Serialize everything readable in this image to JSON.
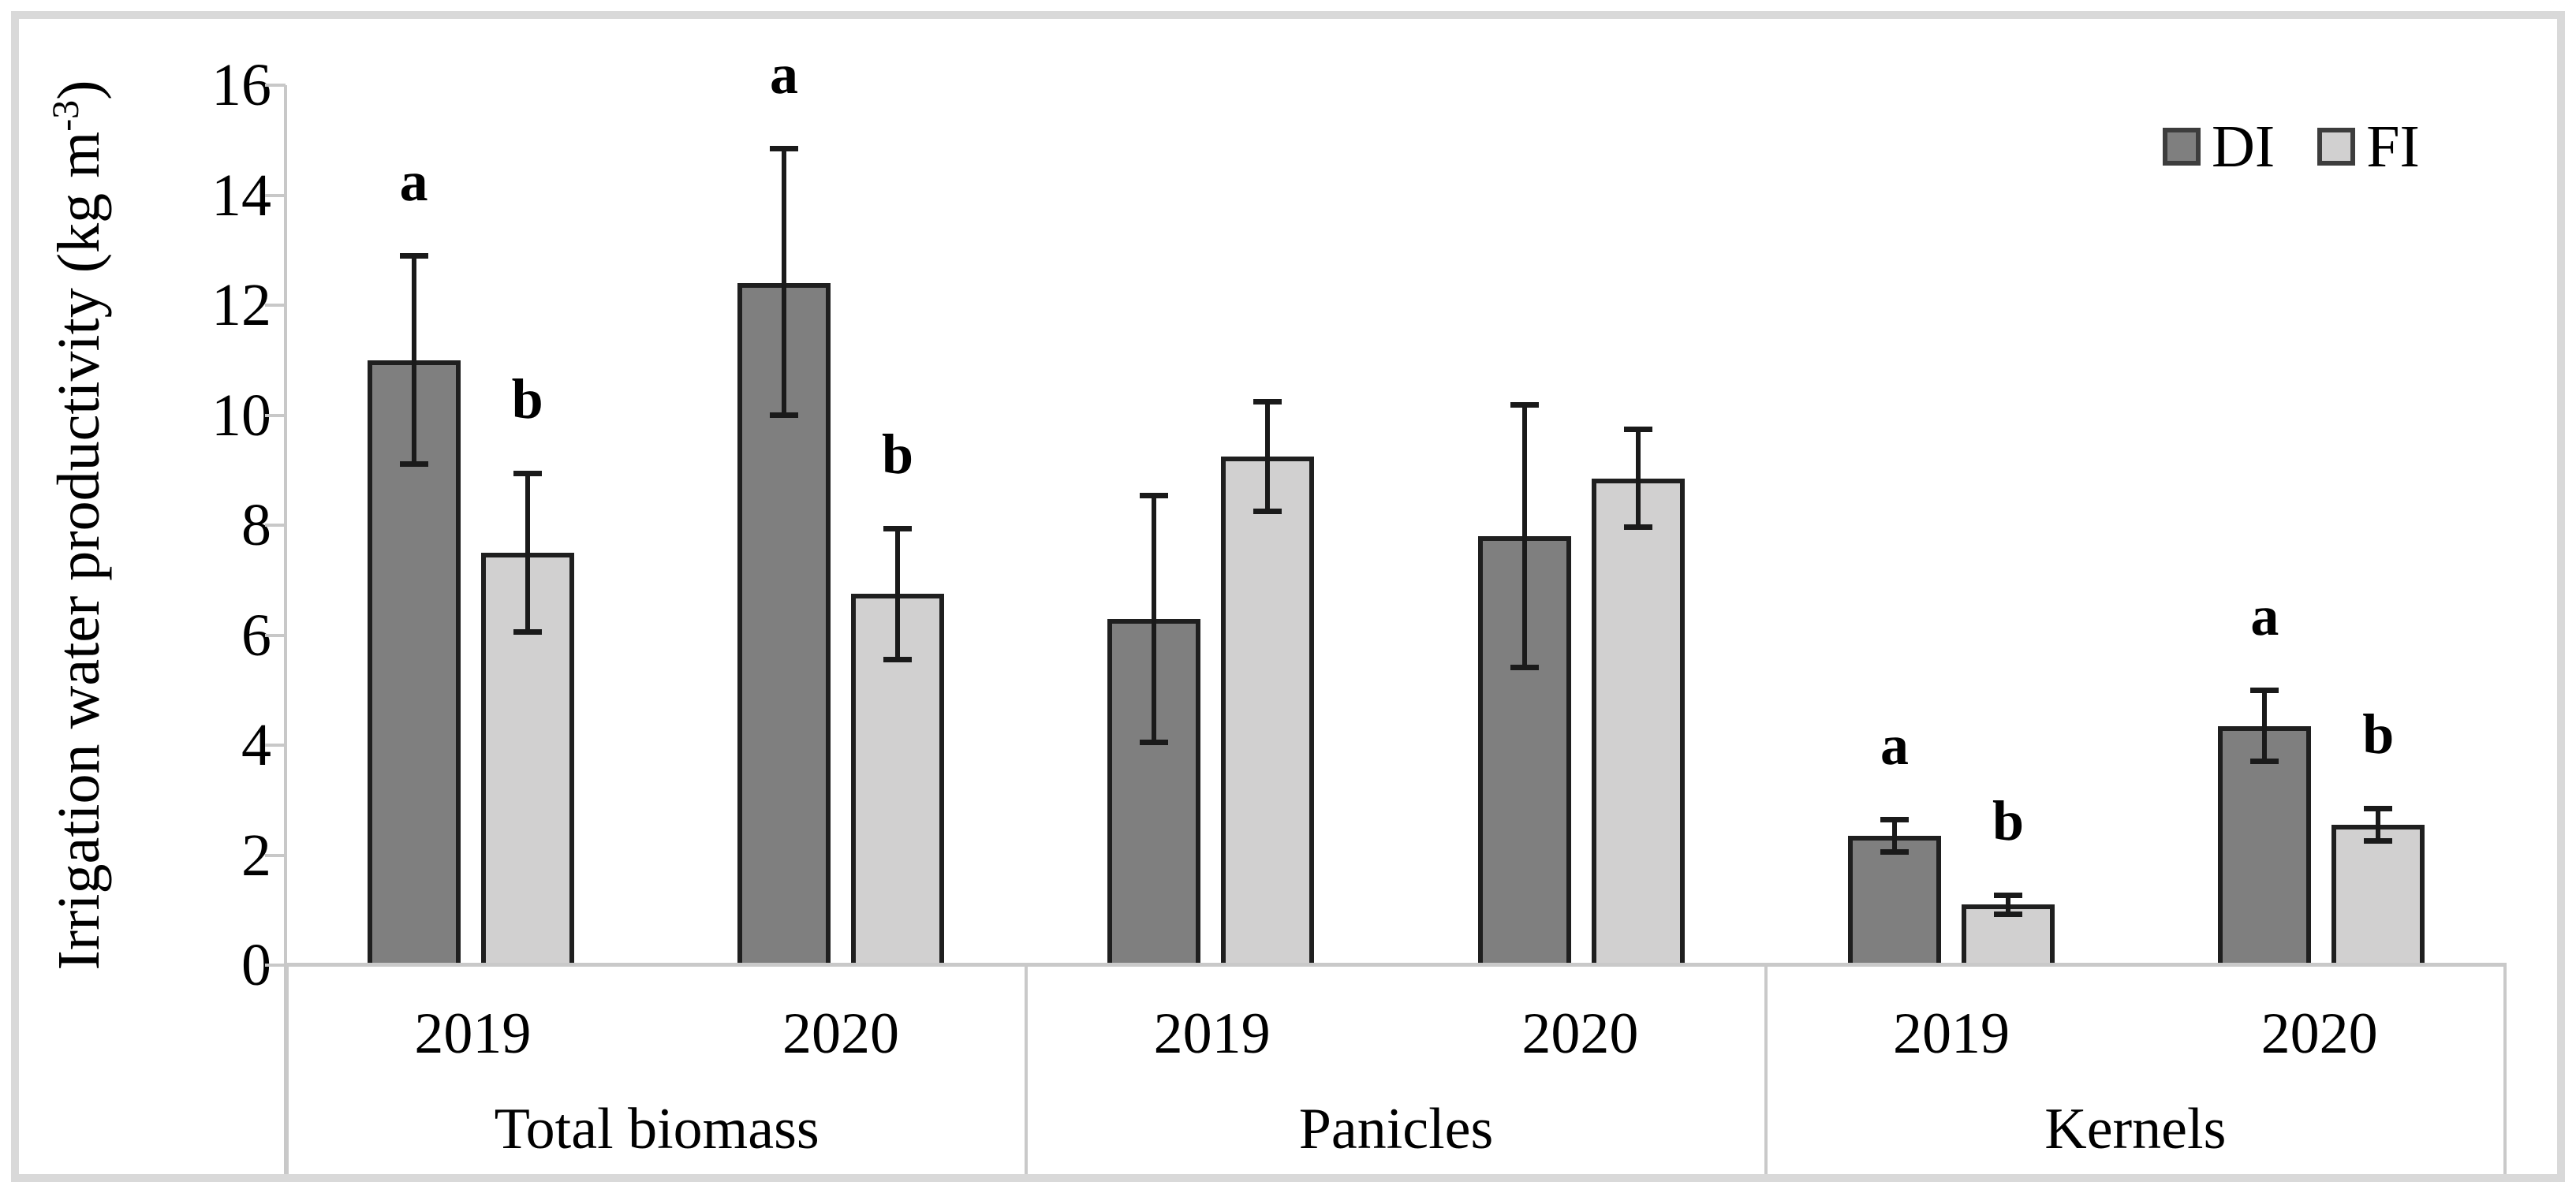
{
  "figure": {
    "background": "#ffffff",
    "border_color": "#d9d9d9"
  },
  "axis": {
    "y": {
      "title_main": "Irrigation water productivity (kg m",
      "title_sup": "-3",
      "title_close": ")",
      "ticks": [
        0,
        2,
        4,
        6,
        8,
        10,
        12,
        14,
        16
      ],
      "min": 0,
      "max": 16
    }
  },
  "legend": {
    "items": [
      {
        "label": "DI",
        "color": "#7f7f7f"
      },
      {
        "label": "FI",
        "color": "#d1d0d0"
      }
    ]
  },
  "colors": {
    "di_fill": "#7f7f7f",
    "fi_fill": "#d1d0d0",
    "bar_border": "#1f1f1f",
    "error_bar": "#1a1a1a",
    "axis_line": "#c8c8c8",
    "text": "#000000"
  },
  "chart_data": {
    "type": "bar",
    "title": "",
    "xlabel": "",
    "ylabel": "Irrigation water productivity (kg m-3)",
    "ylim": [
      0,
      16
    ],
    "ytick_step": 2,
    "grid": false,
    "legend_position": "top-right",
    "series_names": [
      "DI",
      "FI"
    ],
    "groups": [
      {
        "label": "Total biomass",
        "clusters": [
          {
            "year": "2019",
            "bars": [
              {
                "series": "DI",
                "value": 11.0,
                "err_low": 9.1,
                "err_high": 12.9,
                "letter": "a"
              },
              {
                "series": "FI",
                "value": 7.5,
                "err_low": 6.05,
                "err_high": 8.95,
                "letter": "b"
              }
            ]
          },
          {
            "year": "2020",
            "bars": [
              {
                "series": "DI",
                "value": 12.4,
                "err_low": 10.0,
                "err_high": 14.85,
                "letter": "a"
              },
              {
                "series": "FI",
                "value": 6.75,
                "err_low": 5.55,
                "err_high": 7.95,
                "letter": "b"
              }
            ]
          }
        ]
      },
      {
        "label": "Panicles",
        "clusters": [
          {
            "year": "2019",
            "bars": [
              {
                "series": "DI",
                "value": 6.3,
                "err_low": 4.05,
                "err_high": 8.55,
                "letter": ""
              },
              {
                "series": "FI",
                "value": 9.25,
                "err_low": 8.25,
                "err_high": 10.25,
                "letter": ""
              }
            ]
          },
          {
            "year": "2020",
            "bars": [
              {
                "series": "DI",
                "value": 7.8,
                "err_low": 5.4,
                "err_high": 10.2,
                "letter": ""
              },
              {
                "series": "FI",
                "value": 8.85,
                "err_low": 7.95,
                "err_high": 9.75,
                "letter": ""
              }
            ]
          }
        ]
      },
      {
        "label": "Kernels",
        "clusters": [
          {
            "year": "2019",
            "bars": [
              {
                "series": "DI",
                "value": 2.35,
                "err_low": 2.05,
                "err_high": 2.65,
                "letter": "a"
              },
              {
                "series": "FI",
                "value": 1.1,
                "err_low": 0.92,
                "err_high": 1.28,
                "letter": "b"
              }
            ]
          },
          {
            "year": "2020",
            "bars": [
              {
                "series": "DI",
                "value": 4.35,
                "err_low": 3.7,
                "err_high": 5.0,
                "letter": "a"
              },
              {
                "series": "FI",
                "value": 2.55,
                "err_low": 2.25,
                "err_high": 2.85,
                "letter": "b"
              }
            ]
          }
        ]
      }
    ]
  }
}
